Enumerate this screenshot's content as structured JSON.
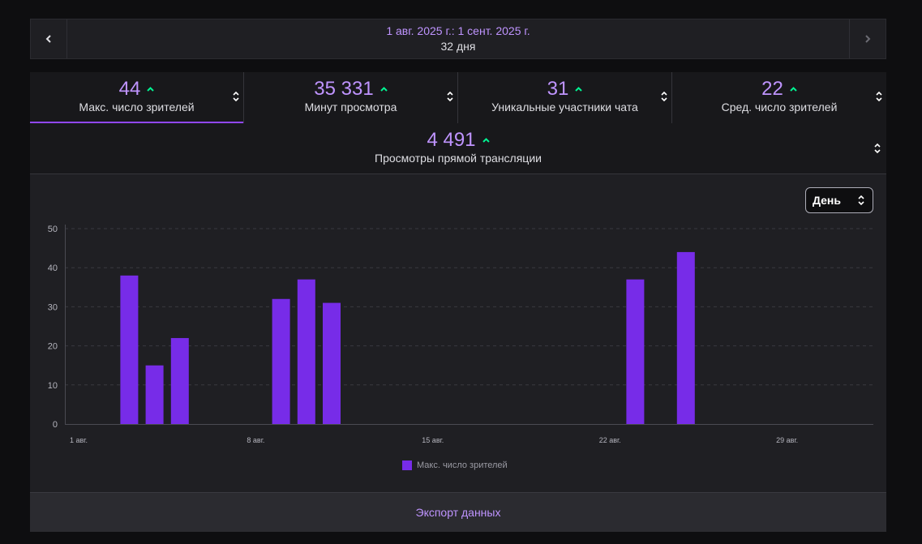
{
  "date_bar": {
    "range": "1 авг. 2025 г.: 1 сент. 2025 г.",
    "days": "32 дня",
    "prev_icon": "chevron-left-icon",
    "next_icon": "chevron-right-icon"
  },
  "stats": [
    {
      "value": "44",
      "label": "Макс. число зрителей",
      "active": true
    },
    {
      "value": "35 331",
      "label": "Минут просмотра",
      "active": false
    },
    {
      "value": "31",
      "label": "Уникальные участники чата",
      "active": false
    },
    {
      "value": "22",
      "label": "Сред. число зрителей",
      "active": false
    }
  ],
  "stat_wide": {
    "value": "4 491",
    "label": "Просмотры прямой трансляции"
  },
  "period_select": {
    "selected": "День"
  },
  "colors": {
    "accent": "#bf94ff",
    "bar": "#772ce8",
    "up": "#00f593",
    "active_underline": "#9147ff"
  },
  "chart_data": {
    "type": "bar",
    "title": "",
    "xlabel": "",
    "ylabel": "",
    "ylim": [
      0,
      50
    ],
    "yticks": [
      0,
      10,
      20,
      30,
      40,
      50
    ],
    "grid": true,
    "x_tick_labels": [
      "1 авг.",
      "8 авг.",
      "15 авг.",
      "22 авг.",
      "29 авг."
    ],
    "x_tick_days": [
      1,
      8,
      15,
      22,
      29
    ],
    "day_range": [
      1,
      32
    ],
    "series": [
      {
        "name": "Макс. число зрителей",
        "points": [
          {
            "day": 3,
            "value": 38
          },
          {
            "day": 4,
            "value": 15
          },
          {
            "day": 5,
            "value": 22
          },
          {
            "day": 9,
            "value": 32
          },
          {
            "day": 10,
            "value": 37
          },
          {
            "day": 11,
            "value": 31
          },
          {
            "day": 23,
            "value": 37
          },
          {
            "day": 25,
            "value": 44
          }
        ]
      }
    ],
    "legend_position": "bottom"
  },
  "export": {
    "label": "Экспорт данных"
  }
}
